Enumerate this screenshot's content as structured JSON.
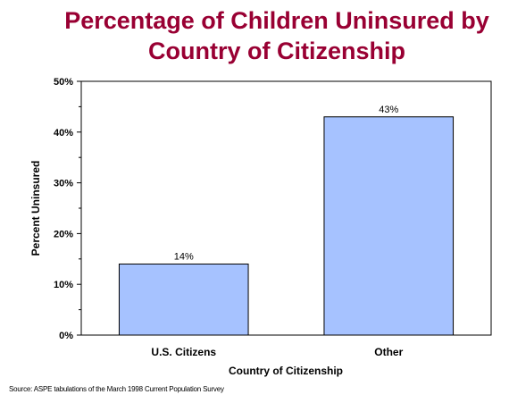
{
  "chart_data": {
    "type": "bar",
    "title_lines": [
      "Percentage of Children Uninsured by",
      "Country of Citizenship"
    ],
    "categories": [
      "U.S. Citizens",
      "Other"
    ],
    "values": [
      14,
      43
    ],
    "data_labels": [
      "14%",
      "43%"
    ],
    "xlabel": "Country of Citizenship",
    "ylabel": "Percent Uninsured",
    "ylim": [
      0,
      50
    ],
    "yticks": [
      0,
      10,
      20,
      30,
      40,
      50
    ],
    "ytick_labels": [
      "0%",
      "10%",
      "20%",
      "30%",
      "40%",
      "50%"
    ],
    "grid": false,
    "bar_color": "#a6c2ff",
    "bar_edge_color": "#000000",
    "title_color": "#990033"
  },
  "source_note": "Source: ASPE tabulations of the March 1998 Current Population Survey"
}
